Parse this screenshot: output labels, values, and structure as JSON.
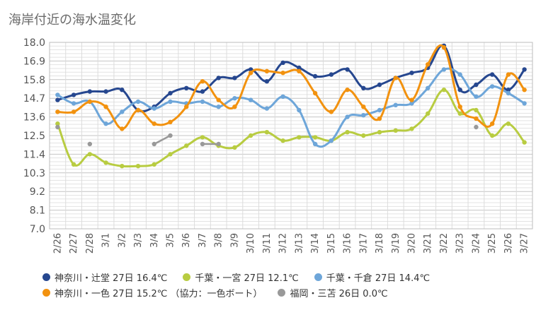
{
  "chart_data": {
    "type": "line",
    "title": "海岸付近の海水温変化",
    "categories": [
      "2/26",
      "2/27",
      "2/28",
      "3/1",
      "3/2",
      "3/3",
      "3/4",
      "3/5",
      "3/6",
      "3/7",
      "3/8",
      "3/9",
      "3/10",
      "3/11",
      "3/12",
      "3/13",
      "3/14",
      "3/15",
      "3/16",
      "3/17",
      "3/18",
      "3/19",
      "3/20",
      "3/21",
      "3/22",
      "3/23",
      "3/24",
      "3/25",
      "3/26",
      "3/27"
    ],
    "y_ticks": [
      "7.0",
      "8.1",
      "9.2",
      "10.3",
      "11.4",
      "12.5",
      "13.6",
      "14.7",
      "15.8",
      "16.9",
      "18.0"
    ],
    "ylim": [
      7.0,
      18.0
    ],
    "grid": true,
    "legend_position": "bottom",
    "series": [
      {
        "name": "神奈川・辻堂",
        "color": "#26478f",
        "values": [
          14.6,
          14.9,
          15.1,
          15.1,
          15.2,
          14.0,
          14.2,
          15.0,
          15.3,
          15.1,
          15.9,
          15.9,
          16.4,
          15.7,
          16.8,
          16.5,
          16.0,
          16.1,
          16.4,
          15.3,
          15.5,
          15.9,
          16.2,
          16.5,
          17.8,
          15.2,
          15.5,
          16.1,
          15.2,
          16.4
        ]
      },
      {
        "name": "千葉・一宮",
        "color": "#b8cc41",
        "values": [
          13.2,
          10.8,
          11.4,
          10.9,
          10.7,
          10.7,
          10.8,
          11.4,
          11.9,
          12.4,
          11.9,
          11.8,
          12.5,
          12.7,
          12.2,
          12.4,
          12.4,
          12.2,
          12.7,
          12.5,
          12.7,
          12.8,
          12.9,
          13.8,
          15.2,
          13.8,
          14.0,
          12.5,
          13.2,
          12.1
        ]
      },
      {
        "name": "千葉・千倉",
        "color": "#6ea6d9",
        "values": [
          14.9,
          14.4,
          14.5,
          13.2,
          13.9,
          14.5,
          14.1,
          14.5,
          14.4,
          14.5,
          14.2,
          14.7,
          14.6,
          14.1,
          14.8,
          14.0,
          12.0,
          12.2,
          13.6,
          13.7,
          14.0,
          14.3,
          14.4,
          15.3,
          16.4,
          16.1,
          14.8,
          15.4,
          15.0,
          14.4
        ]
      },
      {
        "name": "神奈川・一色",
        "color": "#f2920f",
        "values": [
          13.9,
          13.9,
          14.5,
          14.2,
          12.9,
          14.0,
          13.2,
          13.3,
          14.2,
          15.7,
          14.6,
          14.2,
          16.2,
          16.3,
          16.2,
          16.3,
          15.0,
          13.9,
          15.2,
          14.2,
          13.5,
          15.9,
          14.6,
          16.7,
          17.7,
          14.2,
          13.5,
          13.2,
          16.1,
          15.2
        ]
      },
      {
        "name": "福岡・三苫",
        "color": "#999999",
        "values": [
          13.0,
          null,
          12.0,
          null,
          null,
          null,
          12.0,
          12.5,
          null,
          12.0,
          12.0,
          null,
          null,
          null,
          null,
          null,
          null,
          null,
          null,
          null,
          null,
          null,
          null,
          null,
          null,
          null,
          13.0,
          null,
          null,
          null
        ]
      }
    ],
    "legend": [
      [
        {
          "label": "神奈川・辻堂 27日 16.4℃",
          "color": "#26478f"
        },
        {
          "label": "千葉・一宮 27日 12.1℃",
          "color": "#b8cc41"
        },
        {
          "label": "千葉・千倉 27日 14.4℃",
          "color": "#6ea6d9"
        }
      ],
      [
        {
          "label": "神奈川・一色 27日 15.2℃ （協力：一色ボート）",
          "color": "#f2920f"
        },
        {
          "label": "福岡・三苫 26日 0.0℃",
          "color": "#999999"
        }
      ]
    ]
  }
}
